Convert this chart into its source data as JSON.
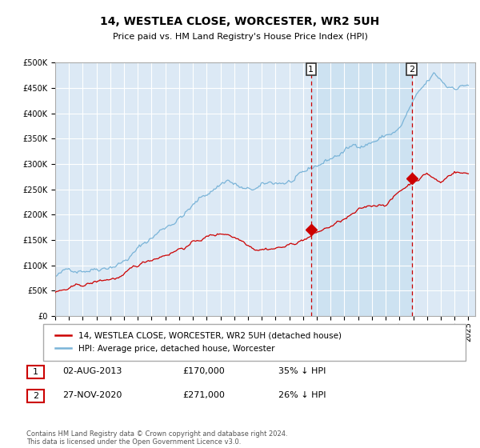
{
  "title": "14, WESTLEA CLOSE, WORCESTER, WR2 5UH",
  "subtitle": "Price paid vs. HM Land Registry's House Price Index (HPI)",
  "ylabel_ticks": [
    "£0",
    "£50K",
    "£100K",
    "£150K",
    "£200K",
    "£250K",
    "£300K",
    "£350K",
    "£400K",
    "£450K",
    "£500K"
  ],
  "ytick_vals": [
    0,
    50000,
    100000,
    150000,
    200000,
    250000,
    300000,
    350000,
    400000,
    450000,
    500000
  ],
  "ylim": [
    0,
    500000
  ],
  "xlim_start": 1995.0,
  "xlim_end": 2025.5,
  "hpi_color": "#7ab4d8",
  "price_color": "#cc0000",
  "background_color": "#dce9f5",
  "highlight_color": "#c8dff0",
  "grid_color": "#ffffff",
  "sale1_date": 2013.58,
  "sale1_price": 170000,
  "sale2_date": 2020.9,
  "sale2_price": 271000,
  "legend_label1": "14, WESTLEA CLOSE, WORCESTER, WR2 5UH (detached house)",
  "legend_label2": "HPI: Average price, detached house, Worcester",
  "table_row1": [
    "1",
    "02-AUG-2013",
    "£170,000",
    "35% ↓ HPI"
  ],
  "table_row2": [
    "2",
    "27-NOV-2020",
    "£271,000",
    "26% ↓ HPI"
  ],
  "footer": "Contains HM Land Registry data © Crown copyright and database right 2024.\nThis data is licensed under the Open Government Licence v3.0.",
  "title_fontsize": 10,
  "subtitle_fontsize": 8,
  "tick_fontsize": 7,
  "legend_fontsize": 7.5
}
